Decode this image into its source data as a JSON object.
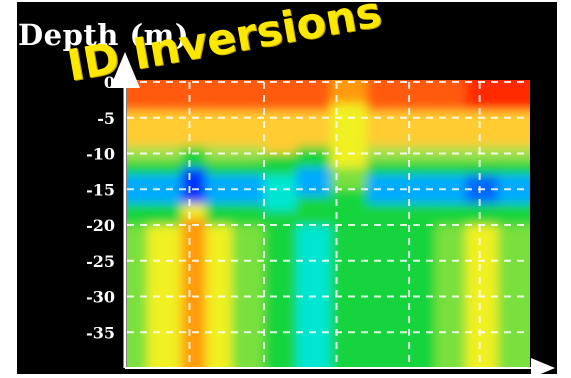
{
  "overlay_text": "ID Inversions",
  "chart_data": {
    "type": "heatmap",
    "title": "",
    "ylabel": "Depth (m)",
    "xlabel": "",
    "yticks": [
      "0",
      "-5",
      "-10",
      "-15",
      "-20",
      "-25",
      "-30",
      "-35"
    ],
    "ylim": [
      0,
      -40
    ],
    "grid": true,
    "colormap": [
      "#0033ff",
      "#00aaff",
      "#00e6d2",
      "#19d43c",
      "#7ae03c",
      "#f0f020",
      "#ff9a10",
      "#ff2a00"
    ],
    "columns": [
      {
        "x": 0.0,
        "layers": [
          [
            0,
            -4,
            "#ff5a10"
          ],
          [
            -4,
            -9,
            "#ffcc30"
          ],
          [
            -9,
            -11,
            "#a0e050"
          ],
          [
            -11,
            -13,
            "#19d43c"
          ],
          [
            -13,
            -17,
            "#00aaff"
          ],
          [
            -17,
            -20,
            "#19d43c"
          ],
          [
            -20,
            -40,
            "#7ae03c"
          ]
        ]
      },
      {
        "x": 0.1,
        "layers": [
          [
            0,
            -4,
            "#ff5a10"
          ],
          [
            -4,
            -9,
            "#ffcc30"
          ],
          [
            -9,
            -11,
            "#a0e050"
          ],
          [
            -11,
            -13,
            "#19d43c"
          ],
          [
            -13,
            -17,
            "#00aaff"
          ],
          [
            -17,
            -20,
            "#19d43c"
          ],
          [
            -20,
            -40,
            "#f0f020"
          ]
        ]
      },
      {
        "x": 0.17,
        "layers": [
          [
            0,
            -4,
            "#ff5a10"
          ],
          [
            -4,
            -9,
            "#ffcc30"
          ],
          [
            -9,
            -12,
            "#19d43c"
          ],
          [
            -12,
            -17,
            "#0033ff"
          ],
          [
            -17,
            -19,
            "#f0f020"
          ],
          [
            -19,
            -40,
            "#ff9a10"
          ]
        ]
      },
      {
        "x": 0.22,
        "layers": [
          [
            0,
            -4,
            "#ff5a10"
          ],
          [
            -4,
            -9,
            "#ffcc30"
          ],
          [
            -9,
            -11,
            "#a0e050"
          ],
          [
            -11,
            -13,
            "#19d43c"
          ],
          [
            -13,
            -17,
            "#00aaff"
          ],
          [
            -17,
            -20,
            "#19d43c"
          ],
          [
            -20,
            -40,
            "#f0f020"
          ]
        ]
      },
      {
        "x": 0.3,
        "layers": [
          [
            0,
            -4,
            "#ff5a10"
          ],
          [
            -4,
            -9,
            "#ffcc30"
          ],
          [
            -9,
            -11,
            "#a0e050"
          ],
          [
            -11,
            -13,
            "#19d43c"
          ],
          [
            -13,
            -17,
            "#00aaff"
          ],
          [
            -17,
            -20,
            "#19d43c"
          ],
          [
            -20,
            -40,
            "#7ae03c"
          ]
        ]
      },
      {
        "x": 0.38,
        "layers": [
          [
            0,
            -4,
            "#ff5a10"
          ],
          [
            -4,
            -10,
            "#ffcc30"
          ],
          [
            -10,
            -13,
            "#19d43c"
          ],
          [
            -13,
            -18,
            "#00e6d2"
          ],
          [
            -18,
            -40,
            "#19d43c"
          ]
        ]
      },
      {
        "x": 0.46,
        "layers": [
          [
            0,
            -4,
            "#ff5a10"
          ],
          [
            -4,
            -9,
            "#ffcc30"
          ],
          [
            -9,
            -12,
            "#19d43c"
          ],
          [
            -12,
            -16,
            "#00aaff"
          ],
          [
            -16,
            -20,
            "#19d43c"
          ],
          [
            -20,
            -40,
            "#00e6d2"
          ]
        ]
      },
      {
        "x": 0.55,
        "layers": [
          [
            0,
            -3,
            "#ff9a10"
          ],
          [
            -3,
            -12,
            "#f0f020"
          ],
          [
            -12,
            -15,
            "#7ae03c"
          ],
          [
            -15,
            -40,
            "#19d43c"
          ]
        ]
      },
      {
        "x": 0.64,
        "layers": [
          [
            0,
            -4,
            "#ff5a10"
          ],
          [
            -4,
            -9,
            "#ffcc30"
          ],
          [
            -9,
            -11,
            "#a0e050"
          ],
          [
            -11,
            -13,
            "#19d43c"
          ],
          [
            -13,
            -17,
            "#00aaff"
          ],
          [
            -17,
            -20,
            "#19d43c"
          ],
          [
            -20,
            -40,
            "#19d43c"
          ]
        ]
      },
      {
        "x": 0.73,
        "layers": [
          [
            0,
            -4,
            "#ff5a10"
          ],
          [
            -4,
            -9,
            "#ffcc30"
          ],
          [
            -9,
            -11,
            "#a0e050"
          ],
          [
            -11,
            -13,
            "#19d43c"
          ],
          [
            -13,
            -17,
            "#00aaff"
          ],
          [
            -17,
            -20,
            "#19d43c"
          ],
          [
            -20,
            -40,
            "#19d43c"
          ]
        ]
      },
      {
        "x": 0.8,
        "layers": [
          [
            0,
            -4,
            "#ff5a10"
          ],
          [
            -4,
            -9,
            "#ffcc30"
          ],
          [
            -9,
            -11,
            "#a0e050"
          ],
          [
            -11,
            -13,
            "#19d43c"
          ],
          [
            -13,
            -17,
            "#00aaff"
          ],
          [
            -17,
            -20,
            "#19d43c"
          ],
          [
            -20,
            -40,
            "#7ae03c"
          ]
        ]
      },
      {
        "x": 0.88,
        "layers": [
          [
            0,
            -4,
            "#ff2a00"
          ],
          [
            -4,
            -9,
            "#ffcc30"
          ],
          [
            -9,
            -11,
            "#a0e050"
          ],
          [
            -11,
            -13,
            "#19d43c"
          ],
          [
            -13,
            -17,
            "#0066ff"
          ],
          [
            -17,
            -20,
            "#19d43c"
          ],
          [
            -20,
            -40,
            "#f0f020"
          ]
        ]
      },
      {
        "x": 0.96,
        "layers": [
          [
            0,
            -4,
            "#ff2a00"
          ],
          [
            -4,
            -9,
            "#ffcc30"
          ],
          [
            -9,
            -11,
            "#a0e050"
          ],
          [
            -11,
            -13,
            "#19d43c"
          ],
          [
            -13,
            -17,
            "#00aaff"
          ],
          [
            -17,
            -20,
            "#19d43c"
          ],
          [
            -20,
            -40,
            "#7ae03c"
          ]
        ]
      }
    ]
  }
}
